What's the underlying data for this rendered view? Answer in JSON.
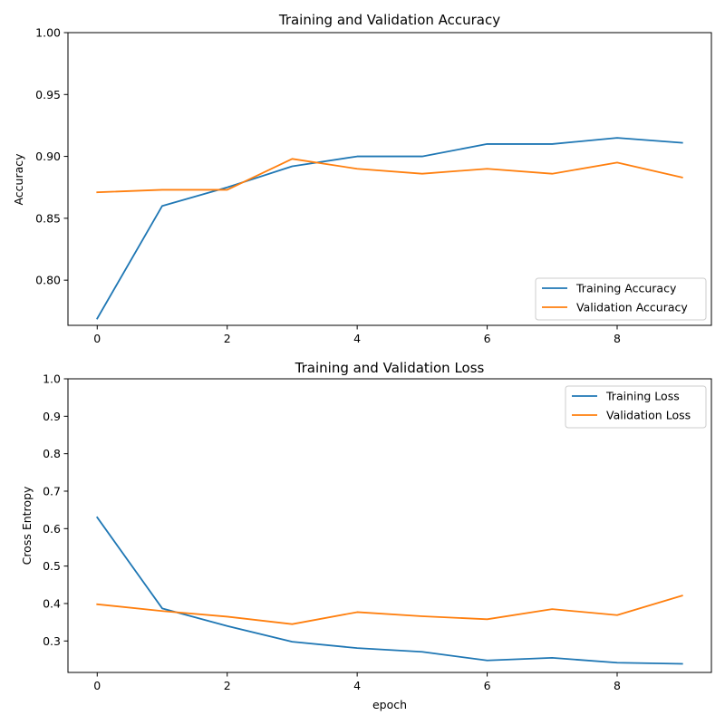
{
  "chart_data": [
    {
      "type": "line",
      "title": "Training and Validation Accuracy",
      "xlabel": "",
      "ylabel": "Accuracy",
      "xlim": [
        -0.45,
        9.45
      ],
      "ylim": [
        0.7635,
        1.0
      ],
      "xticks": [
        0,
        2,
        4,
        6,
        8
      ],
      "yticks": [
        0.8,
        0.85,
        0.9,
        0.95,
        1.0
      ],
      "ytick_labels": [
        "0.80",
        "0.85",
        "0.90",
        "0.95",
        "1.00"
      ],
      "x": [
        0,
        1,
        2,
        3,
        4,
        5,
        6,
        7,
        8,
        9
      ],
      "legend_position": "lower-right",
      "grid": false,
      "series": [
        {
          "name": "Training Accuracy",
          "color": "#1f77b4",
          "values": [
            0.769,
            0.86,
            0.875,
            0.892,
            0.9,
            0.9,
            0.91,
            0.91,
            0.915,
            0.911
          ]
        },
        {
          "name": "Validation Accuracy",
          "color": "#ff7f0e",
          "values": [
            0.871,
            0.873,
            0.873,
            0.898,
            0.89,
            0.886,
            0.89,
            0.886,
            0.895,
            0.883
          ]
        }
      ]
    },
    {
      "type": "line",
      "title": "Training and Validation Loss",
      "xlabel": "epoch",
      "ylabel": "Cross Entropy",
      "xlim": [
        -0.45,
        9.45
      ],
      "ylim": [
        0.216,
        1.0
      ],
      "xticks": [
        0,
        2,
        4,
        6,
        8
      ],
      "yticks": [
        0.3,
        0.4,
        0.5,
        0.6,
        0.7,
        0.8,
        0.9,
        1.0
      ],
      "ytick_labels": [
        "0.3",
        "0.4",
        "0.5",
        "0.6",
        "0.7",
        "0.8",
        "0.9",
        "1.0"
      ],
      "x": [
        0,
        1,
        2,
        3,
        4,
        5,
        6,
        7,
        8,
        9
      ],
      "legend_position": "upper-right",
      "grid": false,
      "series": [
        {
          "name": "Training Loss",
          "color": "#1f77b4",
          "values": [
            0.63,
            0.387,
            0.34,
            0.298,
            0.281,
            0.271,
            0.248,
            0.255,
            0.242,
            0.239
          ]
        },
        {
          "name": "Validation Loss",
          "color": "#ff7f0e",
          "values": [
            0.398,
            0.38,
            0.365,
            0.345,
            0.377,
            0.366,
            0.358,
            0.385,
            0.369,
            0.421
          ]
        }
      ]
    }
  ]
}
